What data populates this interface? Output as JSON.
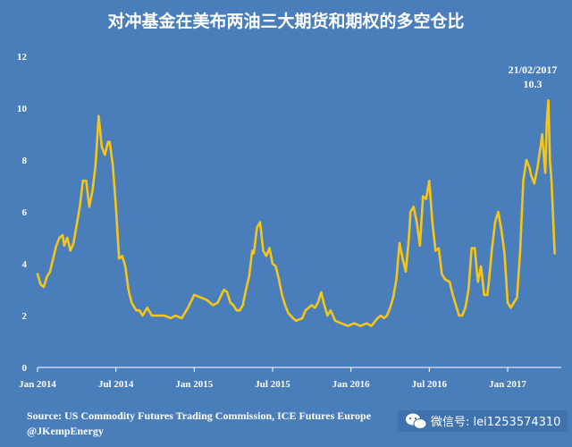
{
  "chart_data": {
    "type": "line",
    "title": "对冲基金在美布两油三大期货和期权的多空仓比",
    "ylim": [
      0,
      12
    ],
    "yticks": [
      0,
      2,
      4,
      6,
      8,
      10,
      12
    ],
    "xlim": [
      2014.0,
      2017.28
    ],
    "xticks": [
      {
        "value": 2014.0,
        "label": "Jan 2014"
      },
      {
        "value": 2014.5,
        "label": "Jul 2014"
      },
      {
        "value": 2015.0,
        "label": "Jan 2015"
      },
      {
        "value": 2015.5,
        "label": "Jul 2015"
      },
      {
        "value": 2016.0,
        "label": "Jan 2016"
      },
      {
        "value": 2016.5,
        "label": "Jul 2016"
      },
      {
        "value": 2017.0,
        "label": "Jan 2017"
      }
    ],
    "grid": false,
    "series": [
      {
        "color": "#F5C518",
        "points": [
          [
            2014.0,
            3.6
          ],
          [
            2014.02,
            3.2
          ],
          [
            2014.04,
            3.1
          ],
          [
            2014.06,
            3.5
          ],
          [
            2014.08,
            3.7
          ],
          [
            2014.1,
            4.2
          ],
          [
            2014.12,
            4.7
          ],
          [
            2014.14,
            5.0
          ],
          [
            2014.16,
            5.1
          ],
          [
            2014.17,
            4.7
          ],
          [
            2014.19,
            5.0
          ],
          [
            2014.21,
            4.5
          ],
          [
            2014.23,
            4.8
          ],
          [
            2014.25,
            5.5
          ],
          [
            2014.27,
            6.2
          ],
          [
            2014.29,
            7.2
          ],
          [
            2014.31,
            7.2
          ],
          [
            2014.33,
            6.2
          ],
          [
            2014.35,
            6.8
          ],
          [
            2014.37,
            7.8
          ],
          [
            2014.39,
            9.7
          ],
          [
            2014.41,
            8.5
          ],
          [
            2014.43,
            8.2
          ],
          [
            2014.45,
            8.7
          ],
          [
            2014.46,
            8.7
          ],
          [
            2014.48,
            7.8
          ],
          [
            2014.5,
            6.2
          ],
          [
            2014.52,
            4.2
          ],
          [
            2014.54,
            4.3
          ],
          [
            2014.56,
            3.9
          ],
          [
            2014.58,
            3.0
          ],
          [
            2014.6,
            2.5
          ],
          [
            2014.63,
            2.2
          ],
          [
            2014.65,
            2.2
          ],
          [
            2014.67,
            2.0
          ],
          [
            2014.7,
            2.3
          ],
          [
            2014.73,
            2.0
          ],
          [
            2014.77,
            2.0
          ],
          [
            2014.81,
            2.0
          ],
          [
            2014.85,
            1.9
          ],
          [
            2014.88,
            2.0
          ],
          [
            2014.92,
            1.9
          ],
          [
            2014.96,
            2.3
          ],
          [
            2015.0,
            2.8
          ],
          [
            2015.04,
            2.7
          ],
          [
            2015.08,
            2.6
          ],
          [
            2015.12,
            2.4
          ],
          [
            2015.15,
            2.5
          ],
          [
            2015.19,
            3.0
          ],
          [
            2015.21,
            2.9
          ],
          [
            2015.23,
            2.5
          ],
          [
            2015.25,
            2.4
          ],
          [
            2015.27,
            2.2
          ],
          [
            2015.29,
            2.2
          ],
          [
            2015.31,
            2.4
          ],
          [
            2015.33,
            3.0
          ],
          [
            2015.35,
            3.5
          ],
          [
            2015.37,
            4.5
          ],
          [
            2015.38,
            4.4
          ],
          [
            2015.4,
            5.4
          ],
          [
            2015.42,
            5.6
          ],
          [
            2015.44,
            4.5
          ],
          [
            2015.46,
            4.3
          ],
          [
            2015.48,
            4.6
          ],
          [
            2015.5,
            4.0
          ],
          [
            2015.52,
            3.9
          ],
          [
            2015.54,
            3.4
          ],
          [
            2015.56,
            2.8
          ],
          [
            2015.58,
            2.4
          ],
          [
            2015.6,
            2.1
          ],
          [
            2015.63,
            1.9
          ],
          [
            2015.65,
            1.8
          ],
          [
            2015.69,
            1.9
          ],
          [
            2015.71,
            2.2
          ],
          [
            2015.73,
            2.3
          ],
          [
            2015.75,
            2.4
          ],
          [
            2015.77,
            2.3
          ],
          [
            2015.79,
            2.5
          ],
          [
            2015.81,
            2.9
          ],
          [
            2015.83,
            2.4
          ],
          [
            2015.85,
            2.0
          ],
          [
            2015.87,
            2.2
          ],
          [
            2015.9,
            1.8
          ],
          [
            2015.94,
            1.7
          ],
          [
            2015.98,
            1.6
          ],
          [
            2016.02,
            1.7
          ],
          [
            2016.06,
            1.6
          ],
          [
            2016.1,
            1.7
          ],
          [
            2016.13,
            1.6
          ],
          [
            2016.17,
            1.9
          ],
          [
            2016.19,
            2.0
          ],
          [
            2016.21,
            1.9
          ],
          [
            2016.23,
            2.0
          ],
          [
            2016.25,
            2.3
          ],
          [
            2016.27,
            2.7
          ],
          [
            2016.29,
            3.4
          ],
          [
            2016.31,
            4.8
          ],
          [
            2016.33,
            4.2
          ],
          [
            2016.35,
            3.7
          ],
          [
            2016.37,
            5.0
          ],
          [
            2016.38,
            6.0
          ],
          [
            2016.4,
            6.2
          ],
          [
            2016.42,
            5.6
          ],
          [
            2016.44,
            4.7
          ],
          [
            2016.46,
            6.6
          ],
          [
            2016.48,
            6.5
          ],
          [
            2016.5,
            7.2
          ],
          [
            2016.52,
            5.6
          ],
          [
            2016.54,
            4.5
          ],
          [
            2016.56,
            4.6
          ],
          [
            2016.58,
            3.6
          ],
          [
            2016.6,
            3.4
          ],
          [
            2016.63,
            3.3
          ],
          [
            2016.65,
            2.8
          ],
          [
            2016.67,
            2.4
          ],
          [
            2016.69,
            2.0
          ],
          [
            2016.71,
            2.0
          ],
          [
            2016.73,
            2.3
          ],
          [
            2016.75,
            3.0
          ],
          [
            2016.77,
            4.6
          ],
          [
            2016.79,
            4.6
          ],
          [
            2016.81,
            3.3
          ],
          [
            2016.83,
            3.9
          ],
          [
            2016.85,
            2.8
          ],
          [
            2016.87,
            2.8
          ],
          [
            2016.88,
            3.3
          ],
          [
            2016.9,
            4.6
          ],
          [
            2016.92,
            5.6
          ],
          [
            2016.94,
            6.0
          ],
          [
            2016.96,
            5.3
          ],
          [
            2016.98,
            4.4
          ],
          [
            2017.0,
            2.5
          ],
          [
            2017.02,
            2.3
          ],
          [
            2017.04,
            2.5
          ],
          [
            2017.06,
            2.7
          ],
          [
            2017.08,
            4.5
          ],
          [
            2017.1,
            7.2
          ],
          [
            2017.12,
            8.0
          ],
          [
            2017.14,
            7.7
          ],
          [
            2017.15,
            7.4
          ],
          [
            2017.17,
            7.1
          ],
          [
            2017.19,
            7.7
          ],
          [
            2017.21,
            8.5
          ],
          [
            2017.22,
            9.0
          ],
          [
            2017.24,
            7.5
          ],
          [
            2017.25,
            9.5
          ],
          [
            2017.26,
            10.3
          ],
          [
            2017.27,
            8.0
          ],
          [
            2017.28,
            7.2
          ],
          [
            2017.3,
            4.4
          ]
        ]
      }
    ],
    "annotation": {
      "x": 2017.26,
      "y": 10.3,
      "date_label": "21/02/2017",
      "value_label": "10.3"
    },
    "source": "Source: US Commodity Futures Trading Commission, ICE Futures Europe",
    "author": "@JKempEnergy"
  },
  "watermark": {
    "icon": "wechat-icon",
    "text": "微信号: lei1253574310"
  }
}
